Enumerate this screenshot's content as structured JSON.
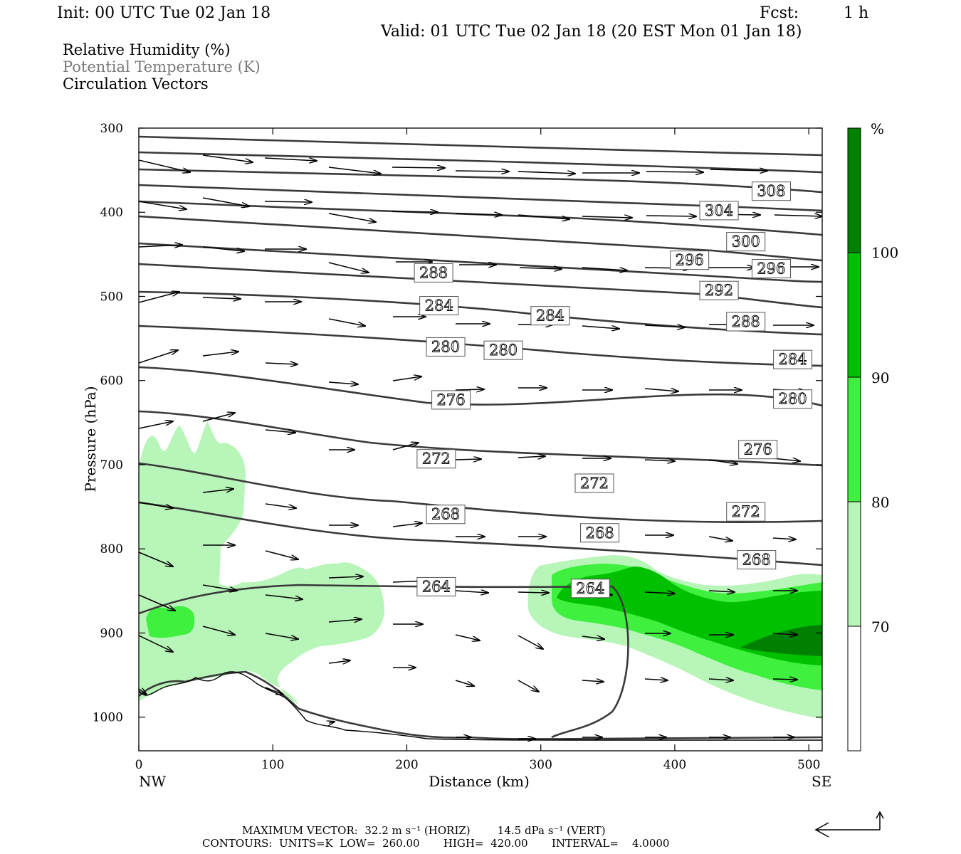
{
  "header": {
    "init": "Init: 00 UTC Tue 02 Jan 18",
    "fcst_label": "Fcst:",
    "fcst_value": "1 h",
    "valid": "Valid: 01 UTC Tue 02 Jan 18 (20 EST Mon 01 Jan 18)",
    "fields": [
      "Relative Humidity (%)",
      "Potential Temperature (K)",
      "Circulation Vectors"
    ]
  },
  "colors": {
    "rh_70_80": "#b8f5b8",
    "rh_80_90": "#3ff03f",
    "rh_90_100": "#00c000",
    "rh_100": "#008000",
    "theta": "#3a3a3a",
    "vector": "#000000"
  },
  "footer": {
    "max_vector": "MAXIMUM VECTOR:  32.2 m s⁻¹ (HORIZ)        14.5 dPa s⁻¹ (VERT)",
    "contours": "CONTOURS:  UNITS=K  LOW=  260.00       HIGH=  420.00       INTERVAL=    4.0000"
  },
  "chart_data": {
    "type": "contour",
    "xlabel": "Distance (km)",
    "ylabel": "Pressure (hPa)",
    "xlim": [
      0,
      510
    ],
    "ylim": [
      1040,
      300
    ],
    "x_ticks": [
      0,
      100,
      200,
      300,
      400,
      500
    ],
    "y_ticks": [
      300,
      400,
      500,
      600,
      700,
      800,
      900,
      1000
    ],
    "x_end_labels": {
      "left": "NW",
      "right": "SE"
    },
    "colorbar": {
      "unit": "%",
      "levels": [
        70,
        80,
        90,
        100
      ]
    },
    "theta_labels": [
      {
        "text": "308",
        "x": 472,
        "p": 375
      },
      {
        "text": "304",
        "x": 433,
        "p": 398
      },
      {
        "text": "300",
        "x": 453,
        "p": 435
      },
      {
        "text": "296",
        "x": 411,
        "p": 457
      },
      {
        "text": "296",
        "x": 472,
        "p": 467
      },
      {
        "text": "292",
        "x": 433,
        "p": 493
      },
      {
        "text": "288",
        "x": 220,
        "p": 472
      },
      {
        "text": "288",
        "x": 453,
        "p": 530
      },
      {
        "text": "284",
        "x": 224,
        "p": 511
      },
      {
        "text": "284",
        "x": 307,
        "p": 523
      },
      {
        "text": "284",
        "x": 488,
        "p": 575
      },
      {
        "text": "280",
        "x": 229,
        "p": 560
      },
      {
        "text": "280",
        "x": 272,
        "p": 564
      },
      {
        "text": "280",
        "x": 488,
        "p": 622
      },
      {
        "text": "276",
        "x": 233,
        "p": 623
      },
      {
        "text": "276",
        "x": 462,
        "p": 682
      },
      {
        "text": "272",
        "x": 222,
        "p": 693
      },
      {
        "text": "272",
        "x": 340,
        "p": 722
      },
      {
        "text": "272",
        "x": 453,
        "p": 756
      },
      {
        "text": "268",
        "x": 229,
        "p": 759
      },
      {
        "text": "268",
        "x": 344,
        "p": 781
      },
      {
        "text": "268",
        "x": 461,
        "p": 813
      },
      {
        "text": "264",
        "x": 222,
        "p": 845
      },
      {
        "text": "264",
        "x": 337,
        "p": 847
      }
    ]
  }
}
